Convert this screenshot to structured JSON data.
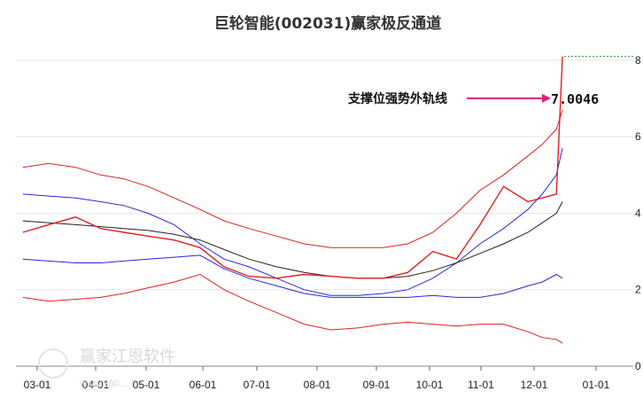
{
  "chart_data": {
    "type": "line",
    "title": "巨轮智能(002031)赢家极反通道",
    "xlabel": "",
    "ylabel": "",
    "x_tick_labels": [
      "03-01",
      "04-01",
      "05-01",
      "06-01",
      "07-01",
      "08-01",
      "09-01",
      "10-01",
      "11-01",
      "12-01",
      "01-01"
    ],
    "y_tick_labels": [
      "0",
      "2",
      "4",
      "6",
      "8"
    ],
    "ylim": [
      0,
      8.3
    ],
    "grid": true,
    "dates": [
      "02-22",
      "03-07",
      "03-21",
      "04-04",
      "04-18",
      "05-02",
      "05-16",
      "05-30",
      "06-13",
      "06-27",
      "07-11",
      "07-25",
      "08-08",
      "08-22",
      "09-05",
      "09-19",
      "10-03",
      "10-17",
      "10-31",
      "11-14",
      "11-28",
      "12-05",
      "12-12",
      "12-15"
    ],
    "series": [
      {
        "color": "#e02020",
        "values": [
          5.2,
          5.3,
          5.2,
          5.0,
          4.9,
          4.7,
          4.4,
          4.1,
          3.8,
          3.6,
          3.4,
          3.2,
          3.1,
          3.1,
          3.1,
          3.2,
          3.5,
          4.0,
          4.6,
          5.0,
          5.5,
          5.8,
          6.2,
          6.7
        ]
      },
      {
        "color": "#2828e0",
        "values": [
          4.5,
          4.45,
          4.4,
          4.3,
          4.2,
          4.0,
          3.7,
          3.2,
          2.8,
          2.6,
          2.3,
          2.0,
          1.85,
          1.85,
          1.9,
          2.0,
          2.3,
          2.7,
          3.2,
          3.6,
          4.1,
          4.5,
          5.0,
          5.7
        ]
      },
      {
        "color": "#222222",
        "values": [
          3.8,
          3.75,
          3.7,
          3.65,
          3.6,
          3.55,
          3.45,
          3.3,
          3.05,
          2.8,
          2.6,
          2.45,
          2.35,
          2.3,
          2.3,
          2.35,
          2.5,
          2.7,
          2.95,
          3.2,
          3.5,
          3.75,
          4.0,
          4.3
        ]
      },
      {
        "color": "#2828e0",
        "values": [
          2.8,
          2.75,
          2.7,
          2.7,
          2.75,
          2.8,
          2.85,
          2.9,
          2.55,
          2.3,
          2.1,
          1.9,
          1.8,
          1.8,
          1.8,
          1.8,
          1.85,
          1.8,
          1.8,
          1.9,
          2.1,
          2.2,
          2.4,
          2.3
        ]
      },
      {
        "color": "#e02020",
        "values": [
          1.8,
          1.7,
          1.75,
          1.8,
          1.9,
          2.05,
          2.2,
          2.4,
          2.0,
          1.7,
          1.4,
          1.1,
          0.95,
          1.0,
          1.1,
          1.15,
          1.1,
          1.05,
          1.1,
          1.1,
          0.9,
          0.75,
          0.7,
          0.6
        ]
      },
      {
        "color": "#e02020",
        "values": [
          3.5,
          3.7,
          3.9,
          3.6,
          3.5,
          3.4,
          3.3,
          3.1,
          2.6,
          2.35,
          2.3,
          2.4,
          2.35,
          2.3,
          2.3,
          2.45,
          3.0,
          2.8,
          3.7,
          4.7,
          4.3,
          4.4,
          4.5,
          8.1
        ]
      }
    ],
    "annotation": {
      "label": "支撑位强势外轨线",
      "value": "7.0046",
      "y": 7.0046
    }
  },
  "watermark": {
    "text": "赢家江恩软件",
    "site": "www.360..."
  }
}
